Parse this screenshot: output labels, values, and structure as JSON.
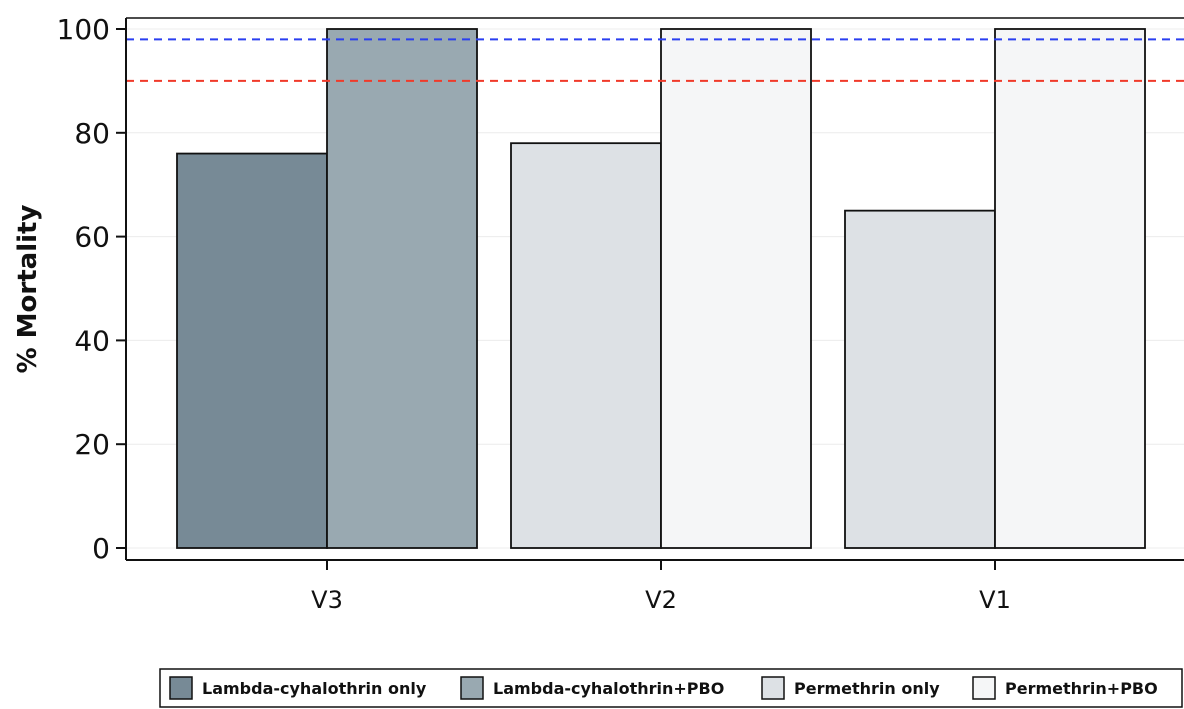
{
  "chart_data": {
    "type": "bar",
    "title": "",
    "xlabel": "",
    "ylabel": "% Mortality",
    "ylim": [
      0,
      100
    ],
    "yticks": [
      0,
      20,
      40,
      60,
      80,
      100
    ],
    "grid": true,
    "legend_position": "bottom",
    "categories": [
      "V3",
      "V2",
      "V1"
    ],
    "groups": [
      {
        "category": "V3",
        "bars": [
          {
            "series": "Lambda-cyhalothrin only",
            "value": 76
          },
          {
            "series": "Lambda-cyhalothrin+PBO",
            "value": 100
          }
        ]
      },
      {
        "category": "V2",
        "bars": [
          {
            "series": "Permethrin only",
            "value": 78
          },
          {
            "series": "Permethrin+PBO",
            "value": 100
          }
        ]
      },
      {
        "category": "V1",
        "bars": [
          {
            "series": "Permethrin only",
            "value": 65
          },
          {
            "series": "Permethrin+PBO",
            "value": 100
          }
        ]
      }
    ],
    "series": [
      {
        "name": "Lambda-cyhalothrin only",
        "color": "#778a96"
      },
      {
        "name": "Lambda-cyhalothrin+PBO",
        "color": "#99a9b1"
      },
      {
        "name": "Permethrin only",
        "color": "#dde1e5"
      },
      {
        "name": "Permethrin+PBO",
        "color": "#f5f6f7"
      }
    ],
    "reference_lines": [
      {
        "value": 98,
        "color": "#2a3ff0",
        "style": "dashed"
      },
      {
        "value": 90,
        "color": "#f03a2a",
        "style": "dashed"
      }
    ]
  }
}
